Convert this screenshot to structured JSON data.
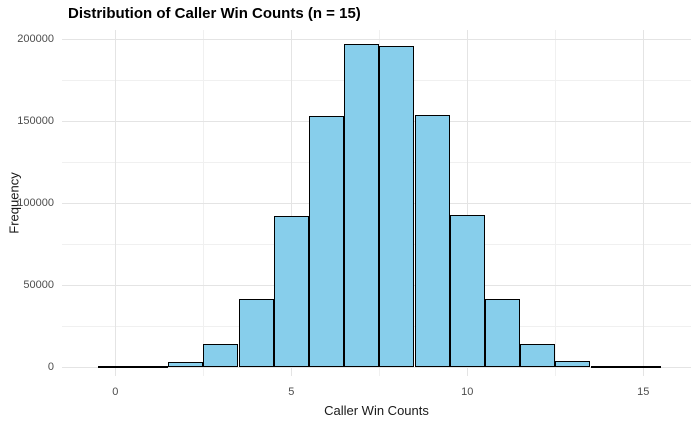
{
  "title": "Distribution of Caller Win Counts (n = 15)",
  "chart_data": {
    "type": "bar",
    "subtype": "histogram",
    "title": "Distribution of Caller Win Counts (n = 15)",
    "xlabel": "Caller Win Counts",
    "ylabel": "Frequency",
    "categories": [
      0,
      1,
      2,
      3,
      4,
      5,
      6,
      7,
      8,
      9,
      10,
      11,
      12,
      13,
      14,
      15
    ],
    "values": [
      30,
      460,
      3100,
      13700,
      41300,
      92100,
      153300,
      197100,
      196000,
      154000,
      92800,
      41600,
      13600,
      3400,
      460,
      30
    ],
    "bin_width": 1,
    "xlim": [
      -1.3,
      16.3
    ],
    "ylim": [
      0,
      200000
    ],
    "x_ticks": [
      0,
      5,
      10,
      15
    ],
    "y_ticks": [
      0,
      50000,
      100000,
      150000,
      200000
    ],
    "x_minor_gridlines": [
      2.5,
      7.5,
      12.5
    ],
    "y_minor_gridlines": [
      25000,
      75000,
      125000,
      175000
    ],
    "grid": true,
    "legend": "none",
    "colors": {
      "bar_fill": "#87CEEB",
      "bar_stroke": "#000000",
      "major_grid": "#E4E4E4",
      "minor_grid": "#F0F0F0",
      "tick_text": "#4D4D4D",
      "axis_title_text": "#1A1A1A",
      "title_text": "#000000",
      "background": "#FFFFFF"
    }
  }
}
